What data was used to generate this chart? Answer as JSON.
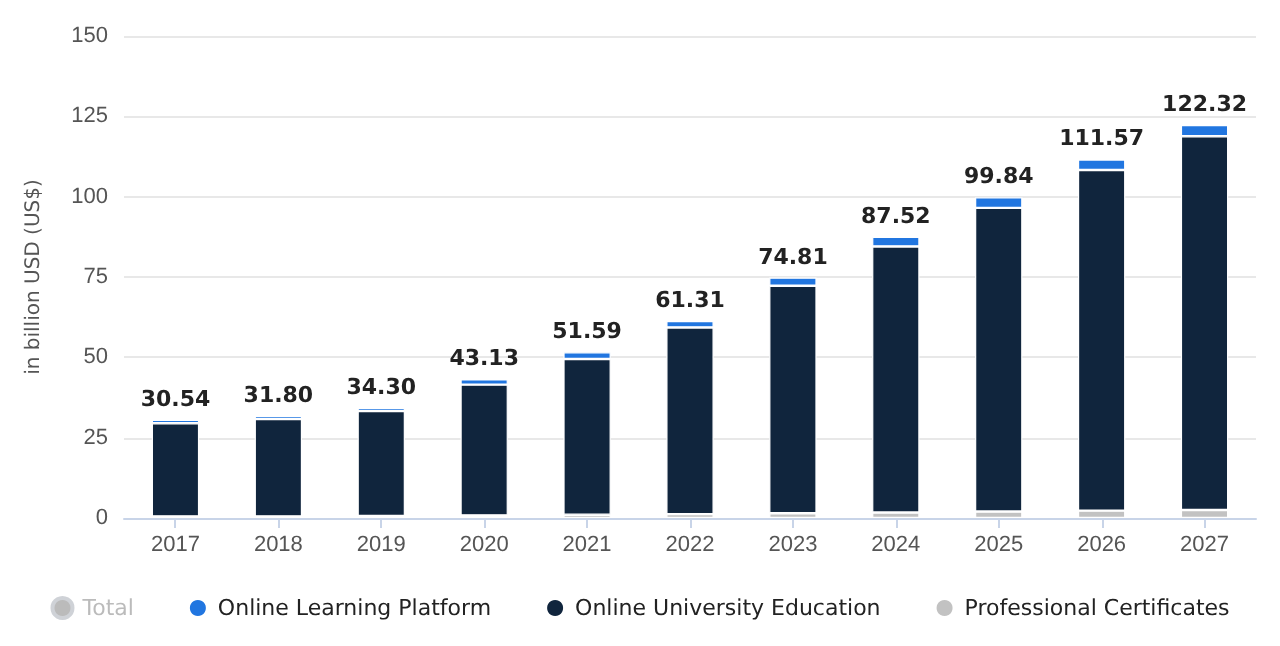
{
  "chart_data": {
    "type": "bar",
    "stacked": true,
    "ylabel": "in billion USD (US$)",
    "categories": [
      "2017",
      "2018",
      "2019",
      "2020",
      "2021",
      "2022",
      "2023",
      "2024",
      "2025",
      "2026",
      "2027"
    ],
    "series": [
      {
        "name": "Professional Certificates",
        "color": "#c2c2c2",
        "values": [
          0.5,
          0.5,
          0.6,
          0.8,
          1.0,
          1.2,
          1.5,
          1.7,
          2.0,
          2.3,
          2.5
        ]
      },
      {
        "name": "Online University Education",
        "color": "#10253d",
        "values": [
          29.0,
          30.3,
          32.7,
          40.7,
          48.5,
          58.1,
          70.8,
          82.8,
          94.5,
          106.0,
          116.3
        ]
      },
      {
        "name": "Online Learning Platform",
        "color": "#2176e0",
        "values": [
          1.04,
          1.0,
          1.0,
          1.63,
          2.09,
          2.01,
          2.51,
          3.02,
          3.34,
          3.27,
          3.52
        ]
      },
      {
        "name": "Total",
        "color": "#cccccc",
        "values": [
          null,
          null,
          null,
          null,
          null,
          null,
          null,
          null,
          null,
          null,
          null
        ]
      }
    ],
    "totals": [
      "30.54",
      "31.80",
      "34.30",
      "43.13",
      "51.59",
      "61.31",
      "74.81",
      "87.52",
      "99.84",
      "111.57",
      "122.32"
    ],
    "ylim": [
      0,
      150
    ],
    "yticks": [
      0,
      25,
      50,
      75,
      100,
      125,
      150
    ],
    "grid": "y",
    "legend": "bottom"
  }
}
